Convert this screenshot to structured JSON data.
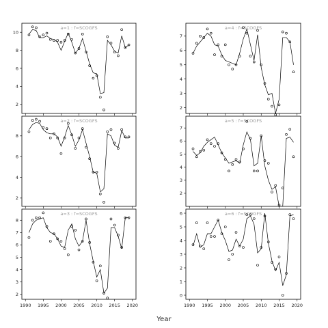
{
  "figure": {
    "xlabel": "Year"
  },
  "chart_data": [
    {
      "type": "line",
      "title": "a=1 : f=SCOGFS",
      "xlim": [
        1989,
        2021
      ],
      "ylim": [
        1.0,
        11.0
      ],
      "xticks": [
        1990,
        1995,
        2000,
        2005,
        2010,
        2015,
        2020
      ],
      "yticks": [
        2,
        4,
        6,
        8,
        10
      ],
      "show_xticklabels": false,
      "series": [
        {
          "kind": "line",
          "x": [
            1991,
            1992,
            1993,
            1994,
            1995,
            1996,
            1997,
            1998,
            1999,
            2000,
            2001,
            2002,
            2003,
            2004,
            2005,
            2006,
            2007,
            2008,
            2009,
            2010,
            2011,
            2012,
            2013,
            2014,
            2015,
            2016,
            2017,
            2018,
            2019
          ],
          "y": [
            9.8,
            10.3,
            10.2,
            9.4,
            9.4,
            9.6,
            9.3,
            9.2,
            8.9,
            8.0,
            9.0,
            9.9,
            8.9,
            7.7,
            8.2,
            9.3,
            7.9,
            6.5,
            5.5,
            5.4,
            3.2,
            3.3,
            9.1,
            8.6,
            7.9,
            7.7,
            9.6,
            8.3,
            8.6
          ]
        },
        {
          "kind": "points",
          "x": [
            1991,
            1992,
            1993,
            1994,
            1995,
            1996,
            1997,
            1998,
            1999,
            2000,
            2001,
            2002,
            2003,
            2004,
            2005,
            2006,
            2007,
            2008,
            2009,
            2010,
            2011,
            2012,
            2013,
            2014,
            2015,
            2016,
            2017,
            2018,
            2019
          ],
          "y": [
            9.7,
            10.6,
            10.5,
            9.5,
            9.7,
            9.9,
            9.2,
            9.1,
            9.1,
            8.9,
            9.1,
            9.8,
            9.2,
            7.7,
            8.2,
            9.8,
            7.8,
            6.3,
            4.9,
            5.2,
            2.8,
            1.4,
            9.5,
            8.8,
            7.8,
            7.4,
            10.3,
            8.3,
            8.6
          ]
        }
      ]
    },
    {
      "type": "line",
      "title": "a=4 : f=SCOGFS",
      "xlim": [
        1989,
        2021
      ],
      "ylim": [
        1.6,
        7.9
      ],
      "xticks": [
        1990,
        1995,
        2000,
        2005,
        2010,
        2015,
        2020
      ],
      "yticks": [
        2,
        3,
        4,
        5,
        6,
        7
      ],
      "show_xticklabels": false,
      "series": [
        {
          "kind": "line",
          "x": [
            1991,
            1992,
            1993,
            1994,
            1995,
            1996,
            1997,
            1998,
            1999,
            2000,
            2001,
            2002,
            2003,
            2004,
            2005,
            2006,
            2007,
            2008,
            2009,
            2010,
            2011,
            2012,
            2013,
            2014,
            2015,
            2016,
            2017,
            2018,
            2019
          ],
          "y": [
            5.8,
            6.3,
            6.6,
            6.9,
            7.2,
            7.0,
            6.4,
            6.3,
            5.7,
            5.3,
            5.2,
            5.1,
            5.0,
            5.8,
            6.8,
            7.5,
            6.4,
            5.3,
            7.1,
            4.8,
            3.6,
            2.9,
            3.0,
            1.6,
            2.6,
            6.9,
            6.9,
            6.6,
            5.0
          ]
        },
        {
          "kind": "points",
          "x": [
            1991,
            1992,
            1993,
            1994,
            1995,
            1996,
            1997,
            1998,
            1999,
            2000,
            2001,
            2002,
            2003,
            2004,
            2005,
            2006,
            2007,
            2008,
            2009,
            2010,
            2011,
            2012,
            2013,
            2014,
            2015,
            2016,
            2017,
            2018,
            2019
          ],
          "y": [
            5.8,
            6.5,
            7.0,
            6.9,
            7.5,
            7.2,
            5.7,
            6.4,
            5.6,
            6.4,
            5.0,
            4.7,
            5.0,
            5.6,
            7.6,
            7.2,
            5.6,
            5.2,
            7.4,
            5.0,
            3.7,
            2.6,
            2.1,
            1.5,
            2.2,
            7.3,
            7.2,
            6.6,
            4.5
          ]
        }
      ]
    },
    {
      "type": "line",
      "title": "a=2 : f=SCOGFS",
      "xlim": [
        1989,
        2021
      ],
      "ylim": [
        1.2,
        9.9
      ],
      "xticks": [
        1990,
        1995,
        2000,
        2005,
        2010,
        2015,
        2020
      ],
      "yticks": [
        2,
        4,
        6,
        8
      ],
      "show_xticklabels": false,
      "series": [
        {
          "kind": "line",
          "x": [
            1991,
            1992,
            1993,
            1994,
            1995,
            1996,
            1997,
            1998,
            1999,
            2000,
            2001,
            2002,
            2003,
            2004,
            2005,
            2006,
            2007,
            2008,
            2009,
            2010,
            2011,
            2012,
            2013,
            2014,
            2015,
            2016,
            2017,
            2018,
            2019
          ],
          "y": [
            8.6,
            9.1,
            9.3,
            9.2,
            8.6,
            8.3,
            8.2,
            8.2,
            7.9,
            7.0,
            7.9,
            9.0,
            8.1,
            7.0,
            7.6,
            8.6,
            7.3,
            6.0,
            4.5,
            4.4,
            2.6,
            2.9,
            8.2,
            8.0,
            7.1,
            6.9,
            8.5,
            7.8,
            7.8
          ]
        },
        {
          "kind": "points",
          "x": [
            1991,
            1992,
            1993,
            1994,
            1995,
            1996,
            1997,
            1998,
            1999,
            2000,
            2001,
            2002,
            2003,
            2004,
            2005,
            2006,
            2007,
            2008,
            2009,
            2010,
            2011,
            2012,
            2013,
            2014,
            2015,
            2016,
            2017,
            2018,
            2019
          ],
          "y": [
            8.4,
            9.5,
            9.6,
            9.4,
            8.8,
            8.7,
            7.8,
            8.2,
            7.8,
            6.3,
            7.8,
            9.2,
            8.1,
            6.8,
            7.8,
            8.7,
            6.9,
            5.8,
            4.5,
            4.5,
            2.4,
            1.6,
            8.4,
            8.6,
            7.3,
            6.8,
            8.6,
            7.9,
            7.9
          ]
        }
      ]
    },
    {
      "type": "line",
      "title": "a=5 : f=SCOGFS",
      "xlim": [
        1989,
        2021
      ],
      "ylim": [
        1.0,
        7.9
      ],
      "xticks": [
        1990,
        1995,
        2000,
        2005,
        2010,
        2015,
        2020
      ],
      "yticks": [
        2,
        3,
        4,
        5,
        6,
        7
      ],
      "show_xticklabels": false,
      "series": [
        {
          "kind": "line",
          "x": [
            1991,
            1992,
            1993,
            1994,
            1995,
            1996,
            1997,
            1998,
            1999,
            2000,
            2001,
            2002,
            2003,
            2004,
            2005,
            2006,
            2007,
            2008,
            2009,
            2010,
            2011,
            2012,
            2013,
            2014,
            2015,
            2016,
            2017,
            2018,
            2019
          ],
          "y": [
            5.2,
            4.9,
            5.1,
            5.6,
            5.9,
            6.1,
            6.3,
            5.7,
            5.1,
            4.7,
            4.3,
            4.4,
            4.5,
            4.3,
            5.7,
            6.7,
            6.1,
            4.1,
            4.3,
            6.4,
            4.1,
            3.0,
            2.3,
            2.5,
            1.0,
            1.0,
            6.2,
            6.3,
            5.9
          ]
        },
        {
          "kind": "points",
          "x": [
            1991,
            1992,
            1993,
            1994,
            1995,
            1996,
            1997,
            1998,
            1999,
            2000,
            2001,
            2002,
            2003,
            2004,
            2005,
            2006,
            2007,
            2008,
            2009,
            2010,
            2011,
            2012,
            2013,
            2014,
            2015,
            2016,
            2017,
            2018,
            2019
          ],
          "y": [
            5.4,
            4.8,
            5.2,
            5.3,
            6.1,
            5.8,
            5.6,
            5.8,
            5.1,
            4.6,
            3.7,
            4.2,
            4.6,
            4.4,
            5.4,
            7.5,
            6.2,
            3.7,
            3.7,
            6.4,
            4.5,
            4.3,
            2.1,
            2.6,
            1.1,
            2.4,
            6.5,
            6.9,
            4.8
          ]
        }
      ]
    },
    {
      "type": "line",
      "title": "a=3 : f=SCOGFS",
      "xlim": [
        1989,
        2021
      ],
      "ylim": [
        1.6,
        8.9
      ],
      "xticks": [
        1990,
        1995,
        2000,
        2005,
        2010,
        2015,
        2020
      ],
      "yticks": [
        2,
        3,
        4,
        5,
        6,
        7,
        8
      ],
      "show_xticklabels": true,
      "series": [
        {
          "kind": "line",
          "x": [
            1991,
            1992,
            1993,
            1994,
            1995,
            1996,
            1997,
            1998,
            1999,
            2000,
            2001,
            2002,
            2003,
            2004,
            2005,
            2006,
            2007,
            2008,
            2009,
            2010,
            2011,
            2012,
            2013,
            2014,
            2015,
            2016,
            2017,
            2018,
            2019
          ],
          "y": [
            7.0,
            7.7,
            8.0,
            8.1,
            8.2,
            7.4,
            7.0,
            6.9,
            6.5,
            5.9,
            5.8,
            7.2,
            7.7,
            6.5,
            5.9,
            6.3,
            8.0,
            6.1,
            4.7,
            3.4,
            4.0,
            2.1,
            2.5,
            7.4,
            7.4,
            6.7,
            5.7,
            8.2,
            8.2
          ]
        },
        {
          "kind": "points",
          "x": [
            1991,
            1992,
            1993,
            1994,
            1995,
            1996,
            1997,
            1998,
            1999,
            2000,
            2001,
            2002,
            2003,
            2004,
            2005,
            2006,
            2007,
            2008,
            2009,
            2010,
            2011,
            2012,
            2013,
            2014,
            2015,
            2016,
            2017,
            2018,
            2019
          ],
          "y": [
            6.6,
            8.0,
            8.2,
            8.2,
            8.6,
            7.5,
            6.3,
            6.9,
            6.5,
            6.3,
            5.7,
            5.2,
            7.5,
            7.2,
            5.6,
            6.3,
            8.1,
            6.2,
            4.6,
            3.1,
            4.3,
            2.1,
            1.7,
            8.1,
            7.6,
            6.8,
            5.8,
            8.2,
            8.2
          ]
        }
      ]
    },
    {
      "type": "line",
      "title": "a=6 : f=SCOGFS",
      "xlim": [
        1989,
        2021
      ],
      "ylim": [
        -0.3,
        6.3
      ],
      "xticks": [
        1990,
        1995,
        2000,
        2005,
        2010,
        2015,
        2020
      ],
      "yticks": [
        0,
        1,
        2,
        3,
        4,
        5,
        6
      ],
      "show_xticklabels": true,
      "series": [
        {
          "kind": "line",
          "x": [
            1991,
            1992,
            1993,
            1994,
            1995,
            1996,
            1997,
            1998,
            1999,
            2000,
            2001,
            2002,
            2003,
            2004,
            2005,
            2006,
            2007,
            2008,
            2009,
            2010,
            2011,
            2012,
            2013,
            2014,
            2015,
            2016,
            2017,
            2018,
            2019
          ],
          "y": [
            3.6,
            4.5,
            3.5,
            3.7,
            4.5,
            4.5,
            5.0,
            5.5,
            4.6,
            4.0,
            3.2,
            3.3,
            4.1,
            3.6,
            4.1,
            5.6,
            5.8,
            5.2,
            3.1,
            3.4,
            6.0,
            3.8,
            2.5,
            1.8,
            2.4,
            0.7,
            1.5,
            5.8,
            5.9
          ]
        },
        {
          "kind": "points",
          "x": [
            1991,
            1992,
            1993,
            1994,
            1995,
            1996,
            1997,
            1998,
            1999,
            2000,
            2001,
            2002,
            2003,
            2004,
            2005,
            2006,
            2007,
            2008,
            2009,
            2010,
            2011,
            2012,
            2013,
            2014,
            2015,
            2016,
            2017,
            2018,
            2019
          ],
          "y": [
            3.7,
            5.3,
            3.6,
            3.4,
            5.3,
            4.3,
            4.3,
            5.5,
            4.5,
            5.0,
            2.6,
            3.0,
            4.6,
            3.6,
            3.5,
            5.9,
            5.9,
            5.6,
            2.2,
            3.5,
            5.8,
            3.9,
            2.4,
            1.9,
            2.8,
            0.0,
            1.6,
            5.9,
            5.6
          ]
        }
      ]
    }
  ]
}
